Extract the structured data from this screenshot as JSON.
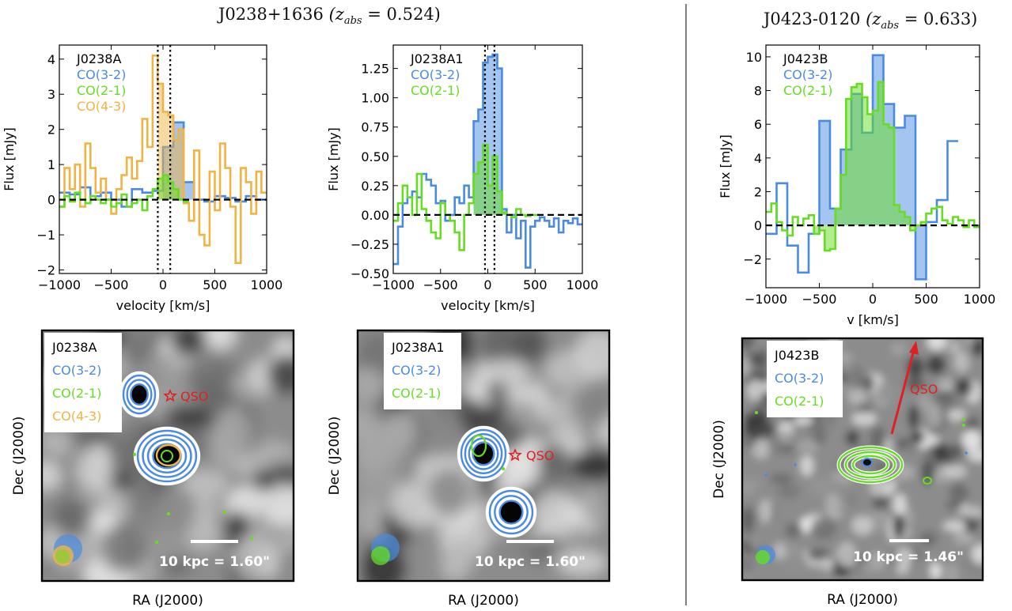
{
  "titles": {
    "left": {
      "name": "J0238+1636",
      "z_text": "(z",
      "z_sub": "abs",
      "z_value": " = 0.524)"
    },
    "right": {
      "name": "J0423-0120",
      "z_text": "(z",
      "z_sub": "abs",
      "z_value": " = 0.633)"
    }
  },
  "colors": {
    "co32": "#4a8be0",
    "co21": "#66dd22",
    "co43": "#f0b445",
    "qso": "#e02020",
    "black": "#000000"
  },
  "chart_data": [
    {
      "type": "line",
      "step": true,
      "name": "J0238A",
      "xlabel": "velocity [km/s]",
      "ylabel": "Flux [mJy]",
      "xlim": [
        -1000,
        1000
      ],
      "ylim": [
        -2.1,
        4.4
      ],
      "xticks": [
        -1000,
        -500,
        0,
        500,
        1000
      ],
      "xtick_labels": [
        "−1000",
        "−500",
        "0",
        "500",
        "1000"
      ],
      "yticks": [
        -2,
        -1,
        0,
        1,
        2,
        3,
        4
      ],
      "ytick_labels": [
        "−2",
        "−1",
        "0",
        "1",
        "2",
        "3",
        "4"
      ],
      "legend": [
        "J0238A",
        "CO(3-2)",
        "CO(2-1)",
        "CO(4-3)"
      ],
      "vlines": [
        -50,
        70
      ],
      "fill_range": [
        -50,
        200
      ],
      "series": [
        {
          "name": "CO(3-2)",
          "color": "co32",
          "x": [
            -1000,
            -900,
            -800,
            -700,
            -600,
            -500,
            -400,
            -300,
            -200,
            -100,
            0,
            100,
            200,
            300,
            400,
            500,
            600,
            700,
            800,
            900
          ],
          "values": [
            0.2,
            0.15,
            0.35,
            0.1,
            0.2,
            0.0,
            -0.2,
            0.3,
            0.2,
            0.25,
            1.5,
            2.2,
            0.5,
            0.0,
            -0.05,
            0.1,
            0.05,
            -0.05,
            0.1,
            0.0
          ]
        },
        {
          "name": "CO(2-1)",
          "color": "co21",
          "x": [
            -1000,
            -950,
            -900,
            -850,
            -800,
            -750,
            -700,
            -650,
            -600,
            -550,
            -500,
            -450,
            -400,
            -350,
            -300,
            -250,
            -200,
            -150,
            -100,
            -50,
            0,
            50,
            100,
            150,
            200
          ],
          "values": [
            -0.2,
            0.1,
            -0.05,
            0.2,
            0.0,
            -0.1,
            0.1,
            0.0,
            -0.1,
            0.0,
            -0.2,
            -0.1,
            0.15,
            -0.2,
            -0.1,
            0.0,
            -0.3,
            0.1,
            0.3,
            0.6,
            0.7,
            0.5,
            0.3,
            0.0,
            -0.05
          ]
        },
        {
          "name": "CO(4-3)",
          "color": "co43",
          "x": [
            -1000,
            -950,
            -900,
            -850,
            -800,
            -750,
            -700,
            -650,
            -600,
            -550,
            -500,
            -450,
            -400,
            -350,
            -300,
            -250,
            -200,
            -150,
            -100,
            -50,
            0,
            50,
            100,
            150,
            200,
            250,
            300,
            350,
            400,
            450,
            500,
            550,
            600,
            650,
            700,
            750,
            800,
            850,
            900,
            950
          ],
          "values": [
            -0.2,
            0.9,
            0.3,
            1.0,
            -0.2,
            1.6,
            0.9,
            0.2,
            0.6,
            0.0,
            -0.4,
            0.3,
            0.7,
            1.2,
            0.6,
            1.1,
            2.3,
            1.5,
            4.1,
            3.3,
            2.5,
            2.4,
            1.7,
            2.0,
            -0.1,
            -0.6,
            1.4,
            -1.0,
            -1.3,
            0.8,
            -0.3,
            1.6,
            0.9,
            -0.2,
            -1.8,
            0.9,
            0.5,
            -0.4,
            0.8,
            0.2
          ]
        }
      ]
    },
    {
      "type": "line",
      "step": true,
      "name": "J0238A1",
      "xlabel": "velocity [km/s]",
      "ylabel": "Flux [mJy]",
      "xlim": [
        -1000,
        1000
      ],
      "ylim": [
        -0.5,
        1.45
      ],
      "xticks": [
        -1000,
        -500,
        0,
        500,
        1000
      ],
      "xtick_labels": [
        "−1000",
        "−500",
        "0",
        "500",
        "1000"
      ],
      "yticks": [
        -0.5,
        -0.25,
        0,
        0.25,
        0.5,
        0.75,
        1.0,
        1.25
      ],
      "ytick_labels": [
        "−0.50",
        "−0.25",
        "0.00",
        "0.25",
        "0.50",
        "0.75",
        "1.00",
        "1.25"
      ],
      "legend": [
        "J0238A1",
        "CO(3-2)",
        "CO(2-1)"
      ],
      "vlines": [
        -30,
        70
      ],
      "fill_range": [
        -150,
        150
      ],
      "series": [
        {
          "name": "CO(3-2)",
          "color": "co32",
          "x": [
            -1000,
            -950,
            -900,
            -850,
            -800,
            -750,
            -700,
            -650,
            -600,
            -550,
            -500,
            -450,
            -400,
            -350,
            -300,
            -250,
            -200,
            -150,
            -100,
            -50,
            0,
            50,
            100,
            150,
            200,
            250,
            300,
            350,
            400,
            450,
            500,
            550,
            600,
            650,
            700,
            750,
            800,
            850,
            900,
            950
          ],
          "values": [
            -0.42,
            -0.1,
            0.1,
            0.15,
            0.2,
            0.15,
            0.35,
            0.3,
            0.25,
            0.1,
            0.12,
            -0.05,
            0.0,
            0.15,
            0.1,
            0.25,
            0.15,
            0.8,
            0.9,
            1.3,
            1.35,
            1.37,
            1.25,
            0.05,
            -0.15,
            0.0,
            -0.2,
            -0.05,
            -0.45,
            -0.1,
            -0.05,
            -0.02,
            -0.05,
            -0.1,
            -0.03,
            -0.15,
            -0.05,
            -0.07,
            -0.03,
            -0.08
          ]
        },
        {
          "name": "CO(2-1)",
          "color": "co21",
          "x": [
            -1000,
            -950,
            -900,
            -850,
            -800,
            -750,
            -700,
            -650,
            -600,
            -550,
            -500,
            -450,
            -400,
            -350,
            -300,
            -250,
            -200,
            -150,
            -100,
            -50,
            0,
            50,
            100,
            150,
            200,
            250,
            300,
            350,
            400,
            450,
            500
          ],
          "values": [
            -0.05,
            0.1,
            0.25,
            0.15,
            0.0,
            0.35,
            0.05,
            -0.05,
            -0.15,
            -0.2,
            0.1,
            0.0,
            -0.05,
            -0.15,
            -0.3,
            0.0,
            0.1,
            0.35,
            0.45,
            0.6,
            0.25,
            0.5,
            0.2,
            0.02,
            0.0,
            -0.02,
            0.05,
            0.0,
            -0.01,
            0.0,
            0.0
          ]
        }
      ]
    },
    {
      "type": "line",
      "step": true,
      "name": "J0423B",
      "xlabel": "v [km/s]",
      "ylabel": "Flux [mJy]",
      "xlim": [
        -1000,
        1000
      ],
      "ylim": [
        -3.7,
        10.7
      ],
      "xticks": [
        -1000,
        -500,
        0,
        500,
        1000
      ],
      "xtick_labels": [
        "−1000",
        "−500",
        "0",
        "500",
        "1000"
      ],
      "yticks": [
        -2,
        0,
        2,
        4,
        6,
        8,
        10
      ],
      "ytick_labels": [
        "−2",
        "0",
        "2",
        "4",
        "6",
        "8",
        "10"
      ],
      "legend": [
        "J0423B",
        "CO(3-2)",
        "CO(2-1)"
      ],
      "vlines": [],
      "fill_range": [
        -550,
        450
      ],
      "series": [
        {
          "name": "CO(3-2)",
          "color": "co32",
          "x": [
            -1000,
            -900,
            -800,
            -700,
            -600,
            -500,
            -400,
            -300,
            -200,
            -100,
            0,
            100,
            200,
            300,
            400,
            500,
            600,
            700
          ],
          "values": [
            -0.5,
            2.5,
            -1.2,
            -2.8,
            -0.5,
            6.2,
            1.0,
            4.5,
            7.8,
            5.5,
            10.1,
            7.2,
            5.8,
            6.5,
            -3.2,
            0.2,
            1.5,
            5.0
          ]
        },
        {
          "name": "CO(2-1)",
          "color": "co21",
          "x": [
            -1000,
            -950,
            -900,
            -850,
            -800,
            -750,
            -700,
            -650,
            -600,
            -550,
            -500,
            -450,
            -400,
            -350,
            -300,
            -250,
            -200,
            -150,
            -100,
            -50,
            0,
            50,
            100,
            150,
            200,
            250,
            300,
            350,
            400,
            450,
            500,
            550,
            600,
            650,
            700,
            750,
            800,
            850,
            900,
            950
          ],
          "values": [
            0.8,
            1.3,
            0.2,
            -0.3,
            -0.6,
            0.5,
            0.0,
            0.4,
            0.6,
            -0.5,
            -0.3,
            -1.5,
            -1.4,
            1.0,
            3.0,
            7.5,
            8.2,
            8.4,
            7.6,
            6.6,
            6.8,
            8.5,
            6.0,
            5.8,
            1.2,
            0.8,
            0.5,
            -0.3,
            0.0,
            0.2,
            0.7,
            1.0,
            1.1,
            0.3,
            0.1,
            0.5,
            0.3,
            -0.1,
            0.3,
            -0.1
          ]
        }
      ]
    }
  ],
  "maps": [
    {
      "name": "J0238A",
      "legend": [
        "J0238A",
        "CO(3-2)",
        "CO(2-1)",
        "CO(4-3)"
      ],
      "qso_label": "QSO",
      "scale_label": "10 kpc = 1.60\"",
      "xlabel": "RA (J2000)",
      "ylabel": "Dec (J2000)"
    },
    {
      "name": "J0238A1",
      "legend": [
        "J0238A1",
        "CO(3-2)",
        "CO(2-1)"
      ],
      "qso_label": "QSO",
      "scale_label": "10 kpc = 1.60\"",
      "xlabel": "RA (J2000)",
      "ylabel": "Dec (J2000)"
    },
    {
      "name": "J0423B",
      "legend": [
        "J0423B",
        "CO(3-2)",
        "CO(2-1)"
      ],
      "qso_label": "QSO",
      "scale_label": "10 kpc = 1.46\"",
      "xlabel": "RA (J2000)",
      "ylabel": "Dec (J2000)"
    }
  ]
}
